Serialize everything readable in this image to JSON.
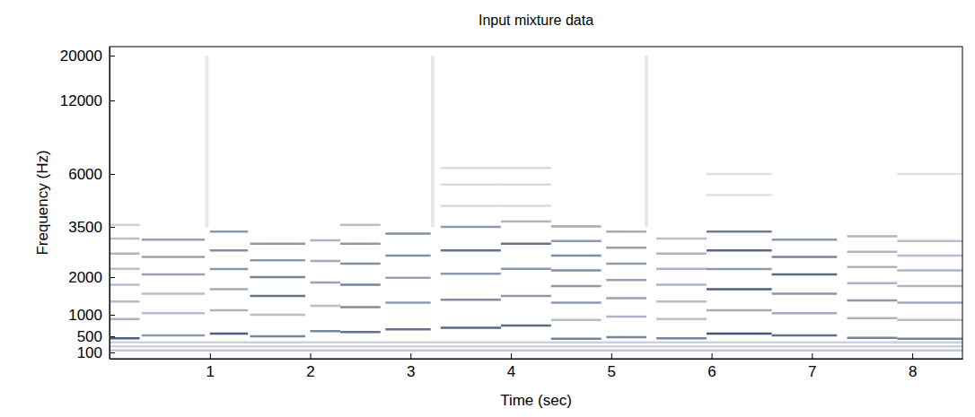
{
  "chart_data": {
    "type": "spectrogram",
    "title": "Input mixture data",
    "x_label": "Time (sec)",
    "y_label": "Frequency (Hz)",
    "xlim": [
      0,
      8.5
    ],
    "xticks": [
      1,
      2,
      3,
      4,
      5,
      6,
      7,
      8
    ],
    "ylim": [
      0,
      22050
    ],
    "yticks": [
      100,
      500,
      1000,
      2000,
      3500,
      6000,
      12000,
      20000
    ],
    "color": "#23395b",
    "clim": [
      0,
      1
    ],
    "onsets": [
      0.97,
      3.22,
      5.35
    ],
    "notes": [
      {
        "t": [
          0,
          8.5
        ],
        "partials": [
          150,
          250,
          350
        ],
        "levels": [
          0.25,
          0.2,
          0.2
        ]
      },
      {
        "t": [
          0,
          0.3
        ],
        "partials": [
          450,
          900,
          1350,
          1800,
          2250,
          2700,
          3150,
          3600
        ],
        "levels": [
          0.8,
          0.35,
          0.3,
          0.3,
          0.3,
          0.35,
          0.3,
          0.2
        ]
      },
      {
        "t": [
          0.32,
          0.95
        ],
        "partials": [
          520,
          1040,
          1560,
          2080,
          2600,
          3120
        ],
        "levels": [
          0.5,
          0.3,
          0.3,
          0.45,
          0.45,
          0.45
        ]
      },
      {
        "t": [
          1.0,
          1.38
        ],
        "partials": [
          560,
          1120,
          1680,
          2240,
          2800,
          3360
        ],
        "levels": [
          0.8,
          0.35,
          0.4,
          0.5,
          0.55,
          0.5
        ]
      },
      {
        "t": [
          1.4,
          1.95
        ],
        "partials": [
          500,
          1000,
          1500,
          2000,
          2500,
          3000
        ],
        "levels": [
          0.6,
          0.3,
          0.7,
          0.6,
          0.5,
          0.5
        ]
      },
      {
        "t": [
          2.0,
          2.3
        ],
        "partials": [
          620,
          1240,
          1860,
          2480,
          3100
        ],
        "levels": [
          0.6,
          0.3,
          0.45,
          0.4,
          0.35
        ]
      },
      {
        "t": [
          2.3,
          2.7
        ],
        "partials": [
          600,
          1200,
          1800,
          2400,
          3000,
          3600
        ],
        "levels": [
          0.7,
          0.55,
          0.6,
          0.55,
          0.5,
          0.3
        ]
      },
      {
        "t": [
          2.75,
          3.2
        ],
        "partials": [
          660,
          1320,
          1980,
          2640,
          3300
        ],
        "levels": [
          0.7,
          0.5,
          0.45,
          0.55,
          0.55
        ]
      },
      {
        "t": [
          3.3,
          3.9
        ],
        "partials": [
          700,
          1400,
          2100,
          2800,
          3500,
          4500,
          5500,
          6500
        ],
        "levels": [
          0.75,
          0.55,
          0.5,
          0.7,
          0.5,
          0.15,
          0.15,
          0.15
        ]
      },
      {
        "t": [
          3.9,
          4.4
        ],
        "partials": [
          750,
          1500,
          2250,
          3000,
          3750,
          4500,
          5500,
          6500
        ],
        "levels": [
          0.75,
          0.5,
          0.5,
          0.7,
          0.35,
          0.15,
          0.15,
          0.15
        ]
      },
      {
        "t": [
          4.4,
          4.9
        ],
        "partials": [
          440,
          880,
          1320,
          1760,
          2200,
          2640,
          3080,
          3520
        ],
        "levels": [
          0.6,
          0.3,
          0.5,
          0.5,
          0.55,
          0.55,
          0.5,
          0.4
        ]
      },
      {
        "t": [
          4.95,
          5.35
        ],
        "partials": [
          480,
          960,
          1440,
          1920,
          2400,
          2880,
          3360
        ],
        "levels": [
          0.6,
          0.35,
          0.45,
          0.45,
          0.5,
          0.45,
          0.4
        ]
      },
      {
        "t": [
          5.45,
          5.95
        ],
        "partials": [
          450,
          900,
          1350,
          1800,
          2250,
          2700,
          3150
        ],
        "levels": [
          0.6,
          0.3,
          0.3,
          0.35,
          0.35,
          0.35,
          0.3
        ]
      },
      {
        "t": [
          5.95,
          6.6
        ],
        "partials": [
          560,
          1120,
          1680,
          2240,
          2800,
          3360,
          5000,
          6000
        ],
        "levels": [
          0.85,
          0.4,
          0.8,
          0.5,
          0.75,
          0.65,
          0.12,
          0.12
        ]
      },
      {
        "t": [
          6.6,
          7.25
        ],
        "partials": [
          520,
          1040,
          1560,
          2080,
          2600,
          3120
        ],
        "levels": [
          0.7,
          0.4,
          0.5,
          0.75,
          0.6,
          0.5
        ]
      },
      {
        "t": [
          7.35,
          7.85
        ],
        "partials": [
          460,
          920,
          1380,
          1840,
          2300,
          2760,
          3220
        ],
        "levels": [
          0.6,
          0.35,
          0.5,
          0.35,
          0.35,
          0.35,
          0.35
        ]
      },
      {
        "t": [
          7.85,
          8.5
        ],
        "partials": [
          440,
          880,
          1320,
          1760,
          2200,
          2640,
          3080,
          6000
        ],
        "levels": [
          0.6,
          0.3,
          0.4,
          0.35,
          0.35,
          0.3,
          0.3,
          0.12
        ]
      }
    ]
  }
}
